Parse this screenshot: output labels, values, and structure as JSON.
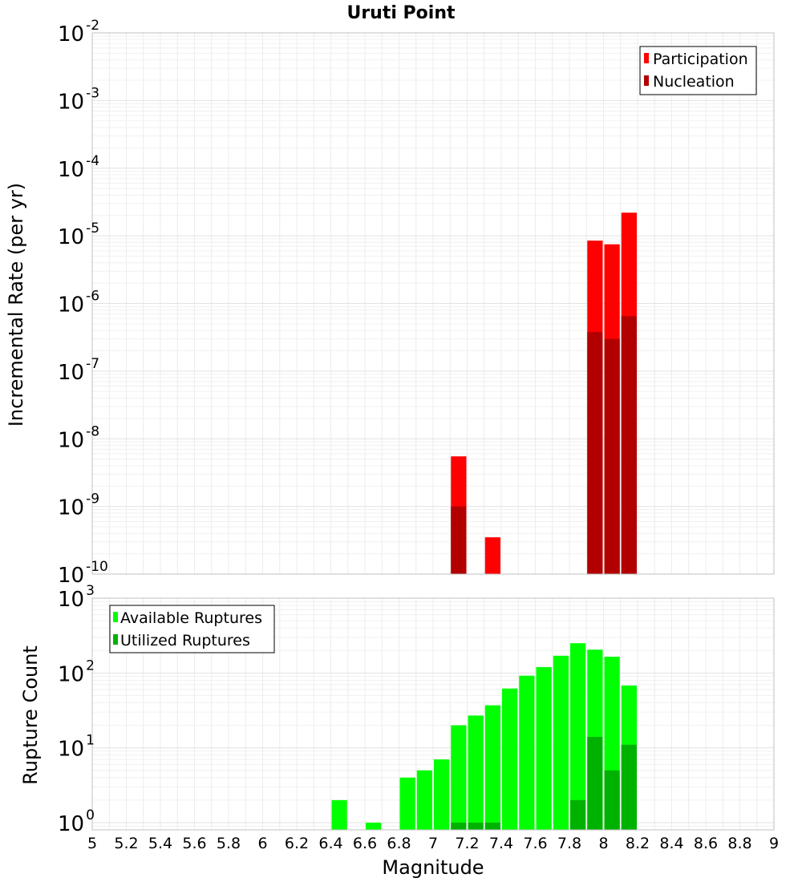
{
  "chart_data": [
    {
      "type": "bar",
      "title": "Uruti Point",
      "xlabel": "Magnitude",
      "ylabel": "Incremental Rate (per yr)",
      "xlim": [
        5,
        9
      ],
      "yscale": "log",
      "ylim": [
        1e-10,
        0.01
      ],
      "bin_width": 0.1,
      "grid": true,
      "legend_position": "top-right",
      "y_ticks": [
        {
          "base": "10",
          "exp": "-10",
          "value": 1e-10
        },
        {
          "base": "10",
          "exp": "-9",
          "value": 1e-09
        },
        {
          "base": "10",
          "exp": "-8",
          "value": 1e-08
        },
        {
          "base": "10",
          "exp": "-7",
          "value": 1e-07
        },
        {
          "base": "10",
          "exp": "-6",
          "value": 1e-06
        },
        {
          "base": "10",
          "exp": "-5",
          "value": 1e-05
        },
        {
          "base": "10",
          "exp": "-4",
          "value": 0.0001
        },
        {
          "base": "10",
          "exp": "-3",
          "value": 0.001
        },
        {
          "base": "10",
          "exp": "-2",
          "value": 0.01
        }
      ],
      "series": [
        {
          "name": "Participation",
          "color": "#ff0000",
          "x": [
            7.15,
            7.35,
            7.95,
            8.05,
            8.15
          ],
          "values": [
            5.5e-09,
            3.5e-10,
            8.5e-06,
            7.5e-06,
            2.2e-05
          ]
        },
        {
          "name": "Nucleation",
          "color": "#b20000",
          "x": [
            7.15,
            7.95,
            8.05,
            8.15
          ],
          "values": [
            1e-09,
            3.8e-07,
            3e-07,
            6.5e-07
          ]
        }
      ]
    },
    {
      "type": "bar",
      "xlabel": "Magnitude",
      "ylabel": "Rupture Count",
      "xlim": [
        5,
        9
      ],
      "yscale": "log",
      "ylim": [
        0.8,
        1000
      ],
      "bin_width": 0.1,
      "grid": true,
      "legend_position": "top-left",
      "y_ticks": [
        {
          "base": "10",
          "exp": "0",
          "value": 1
        },
        {
          "base": "10",
          "exp": "1",
          "value": 10
        },
        {
          "base": "10",
          "exp": "2",
          "value": 100
        },
        {
          "base": "10",
          "exp": "3",
          "value": 1000
        }
      ],
      "x_ticks": [
        "5",
        "5.2",
        "5.4",
        "5.6",
        "5.8",
        "6",
        "6.2",
        "6.4",
        "6.6",
        "6.8",
        "7",
        "7.2",
        "7.4",
        "7.6",
        "7.8",
        "8",
        "8.2",
        "8.4",
        "8.6",
        "8.8",
        "9"
      ],
      "series": [
        {
          "name": "Available Ruptures",
          "color": "#00ff00",
          "x": [
            6.45,
            6.65,
            6.85,
            6.95,
            7.05,
            7.15,
            7.25,
            7.35,
            7.45,
            7.55,
            7.65,
            7.75,
            7.85,
            7.95,
            8.05,
            8.15
          ],
          "values": [
            2,
            1,
            4,
            5,
            7,
            20,
            27,
            37,
            62,
            92,
            120,
            170,
            250,
            205,
            165,
            68
          ]
        },
        {
          "name": "Utilized Ruptures",
          "color": "#00b200",
          "x": [
            7.15,
            7.25,
            7.35,
            7.85,
            7.95,
            8.05,
            8.15
          ],
          "values": [
            1,
            1,
            1,
            2,
            14,
            5,
            11
          ]
        }
      ]
    }
  ]
}
